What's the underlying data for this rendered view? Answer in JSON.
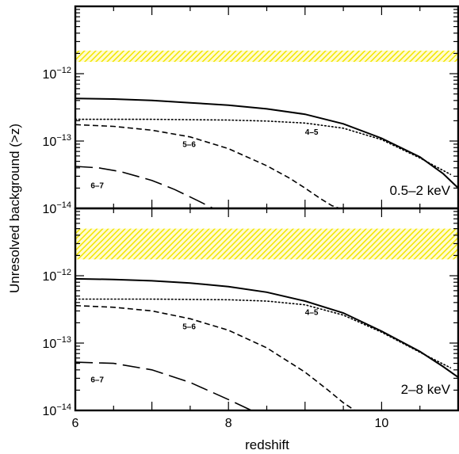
{
  "chart_data": [
    {
      "type": "line",
      "panel": "top",
      "annotation": "0.5–2 keV",
      "ylabel": "Unresolved background (>z)",
      "xlabel": "",
      "xlim": [
        6,
        11
      ],
      "ylim": [
        1e-14,
        1e-11
      ],
      "y_scale": "log",
      "x_ticks": [
        6,
        8,
        10
      ],
      "y_ticks": [
        {
          "value": 1e-14,
          "mantissa": "10",
          "exponent": "−14"
        },
        {
          "value": 1e-13,
          "mantissa": "10",
          "exponent": "−13"
        },
        {
          "value": 1e-12,
          "mantissa": "10",
          "exponent": "−12"
        }
      ],
      "band": {
        "y_low": 1.5e-12,
        "y_high": 2.2e-12,
        "color": "#f2e600"
      },
      "series": [
        {
          "style": "solid",
          "x": [
            6.0,
            6.5,
            7.0,
            7.5,
            8.0,
            8.5,
            9.0,
            9.5,
            10.0,
            10.5,
            10.8,
            11.0
          ],
          "y": [
            4.3e-13,
            4.2e-13,
            4e-13,
            3.7e-13,
            3.4e-13,
            3e-13,
            2.5e-13,
            1.8e-13,
            1.1e-13,
            5.8e-14,
            3.3e-14,
            2e-14
          ]
        },
        {
          "style": "dotted",
          "name": "4–5",
          "x": [
            6.0,
            7.0,
            8.0,
            8.5,
            9.0,
            9.5,
            10.0,
            10.5,
            10.9
          ],
          "y": [
            2.1e-13,
            2.1e-13,
            2.05e-13,
            1.98e-13,
            1.85e-13,
            1.55e-13,
            1.05e-13,
            5.6e-14,
            3.2e-14
          ]
        },
        {
          "style": "dashed",
          "name": "5–6",
          "x": [
            6.0,
            6.5,
            7.0,
            7.5,
            8.0,
            8.5,
            8.8,
            9.0,
            9.2,
            9.35,
            9.45
          ],
          "y": [
            1.75e-13,
            1.65e-13,
            1.45e-13,
            1.15e-13,
            7.7e-14,
            4.3e-14,
            2.8e-14,
            2e-14,
            1.4e-14,
            1.1e-14,
            1e-14
          ]
        },
        {
          "style": "longdash",
          "name": "6–7",
          "x": [
            6.0,
            6.3,
            6.6,
            7.0,
            7.3,
            7.6,
            7.8
          ],
          "y": [
            4.2e-14,
            4e-14,
            3.5e-14,
            2.6e-14,
            1.9e-14,
            1.3e-14,
            1e-14
          ]
        }
      ],
      "curve_labels": [
        {
          "text": "4–5",
          "x": 9.0,
          "y": 1.25e-13
        },
        {
          "text": "5–6",
          "x": 7.4,
          "y": 8.2e-14
        },
        {
          "text": "6–7",
          "x": 6.2,
          "y": 2e-14
        }
      ]
    },
    {
      "type": "line",
      "panel": "bottom",
      "annotation": "2–8 keV",
      "ylabel": "Unresolved background (>z)",
      "xlabel": "redshift",
      "xlim": [
        6,
        11
      ],
      "ylim": [
        1e-14,
        1e-11
      ],
      "y_scale": "log",
      "x_ticks": [
        6,
        8,
        10
      ],
      "y_ticks": [
        {
          "value": 1e-14,
          "mantissa": "10",
          "exponent": "−14"
        },
        {
          "value": 1e-13,
          "mantissa": "10",
          "exponent": "−13"
        },
        {
          "value": 1e-12,
          "mantissa": "10",
          "exponent": "−12"
        }
      ],
      "band": {
        "y_low": 1.75e-12,
        "y_high": 5e-12,
        "color": "#f2e600"
      },
      "series": [
        {
          "style": "solid",
          "x": [
            6.0,
            6.5,
            7.0,
            7.5,
            8.0,
            8.5,
            9.0,
            9.5,
            10.0,
            10.5,
            10.8,
            11.0
          ],
          "y": [
            9e-13,
            8.8e-13,
            8.4e-13,
            7.8e-13,
            6.9e-13,
            5.7e-13,
            4.2e-13,
            2.8e-13,
            1.5e-13,
            7.5e-14,
            4.5e-14,
            3.1e-14
          ]
        },
        {
          "style": "dotted",
          "name": "4–5",
          "x": [
            6.0,
            7.0,
            8.0,
            8.5,
            9.0,
            9.5,
            10.0,
            10.5,
            10.9
          ],
          "y": [
            4.5e-13,
            4.5e-13,
            4.4e-13,
            4.2e-13,
            3.7e-13,
            2.6e-13,
            1.45e-13,
            7.3e-14,
            4.3e-14
          ]
        },
        {
          "style": "dashed",
          "name": "5–6",
          "x": [
            6.0,
            6.5,
            7.0,
            7.5,
            8.0,
            8.5,
            9.0,
            9.3,
            9.5,
            9.65
          ],
          "y": [
            3.6e-13,
            3.4e-13,
            3e-13,
            2.3e-13,
            1.55e-13,
            8.5e-14,
            3.7e-14,
            2e-14,
            1.3e-14,
            1e-14
          ]
        },
        {
          "style": "longdash",
          "name": "6–7",
          "x": [
            6.0,
            6.5,
            7.0,
            7.5,
            8.0,
            8.3
          ],
          "y": [
            5.2e-14,
            5e-14,
            4e-14,
            2.6e-14,
            1.45e-14,
            1e-14
          ]
        }
      ],
      "curve_labels": [
        {
          "text": "4–5",
          "x": 9.0,
          "y": 2.6e-13
        },
        {
          "text": "5–6",
          "x": 7.4,
          "y": 1.6e-13
        },
        {
          "text": "6–7",
          "x": 6.2,
          "y": 2.6e-14
        }
      ]
    }
  ]
}
